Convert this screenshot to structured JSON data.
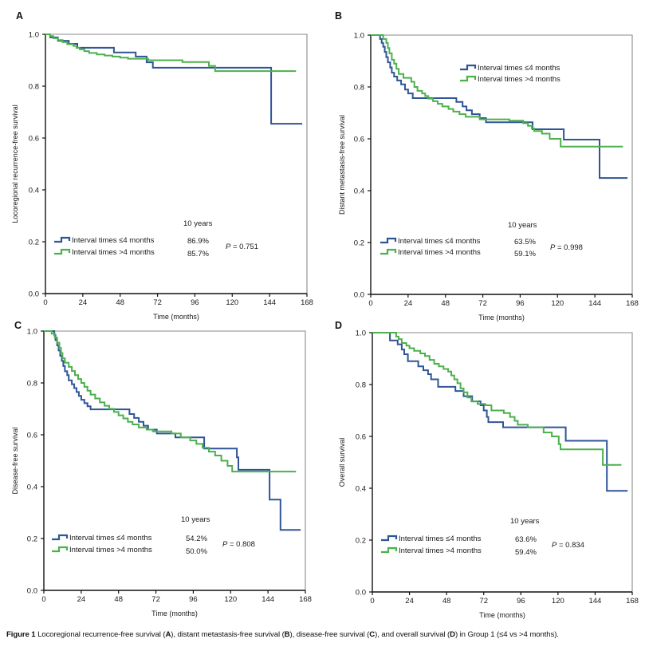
{
  "caption": {
    "figure_label": "Figure 1",
    "parts": [
      " Locoregional recurrence-free survival (",
      "A",
      "), distant metastasis-free survival (",
      "B",
      "), disease-free survival (",
      "C",
      "), and overall survival (",
      "D",
      ") in Group 1 (≤4 vs >4 months)."
    ]
  },
  "colors": {
    "group_le4": "#2f5597",
    "group_gt4": "#4cb04c"
  },
  "chart_data": [
    {
      "panel": "A",
      "type": "line",
      "subtype": "kaplan-meier-step",
      "title": "",
      "xlabel": "Time (months)",
      "ylabel": "Locoregional recurrence-free survival",
      "xlim": [
        0,
        168
      ],
      "ylim": [
        0,
        1
      ],
      "xticks": [
        "0",
        "24",
        "48",
        "72",
        "96",
        "120",
        "144",
        "168"
      ],
      "yticks": [
        "0.0",
        "0.2",
        "0.4",
        "0.6",
        "0.8",
        "1.0"
      ],
      "grid": false,
      "legend_position": "bottom-left",
      "legend_header": "10 years",
      "p_label": "P",
      "p_value": " = 0.751",
      "series": [
        {
          "name": "Interval times ≤4 months",
          "color": "#2f5597",
          "ten_year": "86.9%",
          "steps": [
            [
              3,
              0.988
            ],
            [
              8,
              0.975
            ],
            [
              15,
              0.963
            ],
            [
              20.5,
              0.948
            ],
            [
              44,
              0.93
            ],
            [
              58,
              0.914
            ],
            [
              65,
              0.892
            ],
            [
              69,
              0.871
            ],
            [
              145,
              0.655
            ]
          ],
          "end": 165
        },
        {
          "name": "Interval times >4 months",
          "color": "#4cb04c",
          "ten_year": "85.7%",
          "steps": [
            [
              3,
              0.993
            ],
            [
              5,
              0.985
            ],
            [
              8,
              0.978
            ],
            [
              11,
              0.97
            ],
            [
              14,
              0.962
            ],
            [
              18,
              0.955
            ],
            [
              20,
              0.948
            ],
            [
              22,
              0.942
            ],
            [
              25,
              0.935
            ],
            [
              28,
              0.928
            ],
            [
              33,
              0.922
            ],
            [
              38,
              0.918
            ],
            [
              43,
              0.914
            ],
            [
              48,
              0.91
            ],
            [
              53,
              0.906
            ],
            [
              66,
              0.9
            ],
            [
              88,
              0.893
            ],
            [
              105,
              0.878
            ],
            [
              109,
              0.858
            ]
          ],
          "end": 161
        }
      ]
    },
    {
      "panel": "B",
      "type": "line",
      "subtype": "kaplan-meier-step",
      "title": "",
      "xlabel": "Time (months)",
      "ylabel": "Distant metastasis-free survival",
      "xlim": [
        0,
        168
      ],
      "ylim": [
        0,
        1
      ],
      "xticks": [
        "0",
        "24",
        "48",
        "72",
        "96",
        "120",
        "144",
        "168"
      ],
      "yticks": [
        "0.0",
        "0.2",
        "0.4",
        "0.6",
        "0.8",
        "1.0"
      ],
      "grid": false,
      "legend_position": "bottom-left",
      "extra_legend_position": "top-center",
      "legend_header": "10 years",
      "p_label": "P",
      "p_value": " = 0.998",
      "series": [
        {
          "name": "Interval times ≤4 months",
          "color": "#2f5597",
          "ten_year": "63.5%",
          "steps": [
            [
              6,
              0.985
            ],
            [
              7,
              0.97
            ],
            [
              8,
              0.955
            ],
            [
              9,
              0.935
            ],
            [
              10,
              0.915
            ],
            [
              11,
              0.895
            ],
            [
              12.5,
              0.875
            ],
            [
              13.5,
              0.855
            ],
            [
              15,
              0.84
            ],
            [
              17,
              0.825
            ],
            [
              19.5,
              0.81
            ],
            [
              22,
              0.79
            ],
            [
              24,
              0.775
            ],
            [
              27,
              0.757
            ],
            [
              55,
              0.742
            ],
            [
              59,
              0.725
            ],
            [
              61.5,
              0.71
            ],
            [
              65,
              0.695
            ],
            [
              70,
              0.68
            ],
            [
              74,
              0.664
            ],
            [
              104,
              0.637
            ],
            [
              124,
              0.597
            ],
            [
              147,
              0.449
            ]
          ],
          "end": 165
        },
        {
          "name": "Interval times >4 months",
          "color": "#4cb04c",
          "ten_year": "59.1%",
          "steps": [
            [
              8,
              0.985
            ],
            [
              10,
              0.97
            ],
            [
              11,
              0.95
            ],
            [
              12,
              0.93
            ],
            [
              13.5,
              0.905
            ],
            [
              15,
              0.89
            ],
            [
              16.5,
              0.87
            ],
            [
              18,
              0.85
            ],
            [
              21,
              0.835
            ],
            [
              26,
              0.82
            ],
            [
              28,
              0.8
            ],
            [
              30,
              0.785
            ],
            [
              33,
              0.775
            ],
            [
              35,
              0.765
            ],
            [
              37,
              0.755
            ],
            [
              40,
              0.745
            ],
            [
              43,
              0.735
            ],
            [
              46,
              0.725
            ],
            [
              50,
              0.715
            ],
            [
              53,
              0.705
            ],
            [
              57,
              0.695
            ],
            [
              61,
              0.685
            ],
            [
              70,
              0.675
            ],
            [
              89,
              0.67
            ],
            [
              98,
              0.66
            ],
            [
              101,
              0.65
            ],
            [
              103.5,
              0.64
            ],
            [
              105,
              0.63
            ],
            [
              110,
              0.62
            ],
            [
              115,
              0.6
            ],
            [
              122,
              0.57
            ]
          ],
          "end": 162
        }
      ]
    },
    {
      "panel": "C",
      "type": "line",
      "subtype": "kaplan-meier-step",
      "title": "",
      "xlabel": "Time (months)",
      "ylabel": "Disease-free survival",
      "xlim": [
        0,
        168
      ],
      "ylim": [
        0,
        1
      ],
      "xticks": [
        "0",
        "24",
        "48",
        "72",
        "96",
        "120",
        "144",
        "168"
      ],
      "yticks": [
        "0.0",
        "0.2",
        "0.4",
        "0.6",
        "0.8",
        "1.0"
      ],
      "grid": false,
      "legend_position": "bottom-left",
      "legend_header": "10 years",
      "p_label": "P",
      "p_value": " = 0.808",
      "series": [
        {
          "name": "Interval times ≤4 months",
          "color": "#2f5597",
          "ten_year": "54.2%",
          "steps": [
            [
              6.7,
              0.985
            ],
            [
              7.5,
              0.965
            ],
            [
              8.5,
              0.945
            ],
            [
              9.5,
              0.925
            ],
            [
              10.5,
              0.905
            ],
            [
              11.5,
              0.885
            ],
            [
              12.5,
              0.865
            ],
            [
              13.5,
              0.845
            ],
            [
              15,
              0.83
            ],
            [
              16,
              0.81
            ],
            [
              18,
              0.795
            ],
            [
              19.5,
              0.78
            ],
            [
              21,
              0.765
            ],
            [
              22.5,
              0.75
            ],
            [
              24,
              0.735
            ],
            [
              26,
              0.722
            ],
            [
              28,
              0.71
            ],
            [
              30,
              0.698
            ],
            [
              55,
              0.68
            ],
            [
              58,
              0.665
            ],
            [
              61,
              0.65
            ],
            [
              64,
              0.635
            ],
            [
              67,
              0.62
            ],
            [
              72.6,
              0.605
            ],
            [
              84.5,
              0.59
            ],
            [
              103,
              0.547
            ],
            [
              124,
              0.513
            ],
            [
              125,
              0.465
            ],
            [
              145,
              0.35
            ],
            [
              152,
              0.233
            ]
          ],
          "end": 165
        },
        {
          "name": "Interval times >4 months",
          "color": "#4cb04c",
          "ten_year": "50.0%",
          "steps": [
            [
              5,
              0.99
            ],
            [
              7,
              0.975
            ],
            [
              8.5,
              0.955
            ],
            [
              10,
              0.935
            ],
            [
              11,
              0.915
            ],
            [
              12,
              0.895
            ],
            [
              13.5,
              0.878
            ],
            [
              16,
              0.862
            ],
            [
              18,
              0.846
            ],
            [
              20,
              0.83
            ],
            [
              22,
              0.815
            ],
            [
              24,
              0.8
            ],
            [
              26,
              0.785
            ],
            [
              28,
              0.77
            ],
            [
              30,
              0.755
            ],
            [
              33,
              0.74
            ],
            [
              36,
              0.725
            ],
            [
              39,
              0.712
            ],
            [
              42,
              0.7
            ],
            [
              45,
              0.688
            ],
            [
              48,
              0.675
            ],
            [
              51,
              0.663
            ],
            [
              54,
              0.65
            ],
            [
              57,
              0.64
            ],
            [
              61,
              0.628
            ],
            [
              66,
              0.62
            ],
            [
              70,
              0.613
            ],
            [
              82,
              0.605
            ],
            [
              88,
              0.59
            ],
            [
              94,
              0.578
            ],
            [
              98,
              0.565
            ],
            [
              102,
              0.55
            ],
            [
              106,
              0.535
            ],
            [
              110,
              0.52
            ],
            [
              114,
              0.5
            ],
            [
              118,
              0.48
            ],
            [
              121,
              0.458
            ]
          ],
          "end": 162
        }
      ]
    },
    {
      "panel": "D",
      "type": "line",
      "subtype": "kaplan-meier-step",
      "title": "",
      "xlabel": "Time (months)",
      "ylabel": "Overall survival",
      "xlim": [
        0,
        168
      ],
      "ylim": [
        0,
        1
      ],
      "xticks": [
        "0",
        "24",
        "48",
        "72",
        "96",
        "120",
        "144",
        "168"
      ],
      "yticks": [
        "0.0",
        "0.2",
        "0.4",
        "0.6",
        "0.8",
        "1.0"
      ],
      "grid": false,
      "legend_position": "bottom-left",
      "legend_header": "10 years",
      "p_label": "P",
      "p_value": " = 0.834",
      "series": [
        {
          "name": "Interval times ≤4 months",
          "color": "#2f5597",
          "ten_year": "63.6%",
          "steps": [
            [
              11.4,
              0.97
            ],
            [
              16.4,
              0.955
            ],
            [
              19,
              0.935
            ],
            [
              20.6,
              0.917
            ],
            [
              23,
              0.89
            ],
            [
              29.7,
              0.87
            ],
            [
              33,
              0.855
            ],
            [
              36,
              0.84
            ],
            [
              38,
              0.82
            ],
            [
              42.5,
              0.791
            ],
            [
              53.7,
              0.775
            ],
            [
              59,
              0.755
            ],
            [
              64.5,
              0.735
            ],
            [
              70,
              0.72
            ],
            [
              72,
              0.7
            ],
            [
              74,
              0.675
            ],
            [
              75,
              0.655
            ],
            [
              84.5,
              0.635
            ],
            [
              125,
              0.583
            ],
            [
              151.6,
              0.39
            ]
          ],
          "end": 165
        },
        {
          "name": "Interval times >4 months",
          "color": "#4cb04c",
          "ten_year": "59.4%",
          "steps": [
            [
              15.4,
              0.985
            ],
            [
              17,
              0.975
            ],
            [
              19,
              0.96
            ],
            [
              22,
              0.95
            ],
            [
              24,
              0.94
            ],
            [
              27,
              0.93
            ],
            [
              31,
              0.92
            ],
            [
              34,
              0.91
            ],
            [
              37,
              0.895
            ],
            [
              40,
              0.88
            ],
            [
              43,
              0.87
            ],
            [
              46,
              0.86
            ],
            [
              49,
              0.85
            ],
            [
              51,
              0.835
            ],
            [
              53,
              0.82
            ],
            [
              55,
              0.805
            ],
            [
              57,
              0.785
            ],
            [
              59,
              0.77
            ],
            [
              61.5,
              0.75
            ],
            [
              64,
              0.735
            ],
            [
              68,
              0.725
            ],
            [
              73,
              0.72
            ],
            [
              77,
              0.7
            ],
            [
              85,
              0.69
            ],
            [
              89,
              0.675
            ],
            [
              92,
              0.66
            ],
            [
              94,
              0.645
            ],
            [
              100.5,
              0.635
            ],
            [
              110.7,
              0.615
            ],
            [
              116,
              0.6
            ],
            [
              120.5,
              0.57
            ],
            [
              121.6,
              0.55
            ],
            [
              149,
              0.49
            ]
          ],
          "end": 161
        }
      ]
    }
  ]
}
